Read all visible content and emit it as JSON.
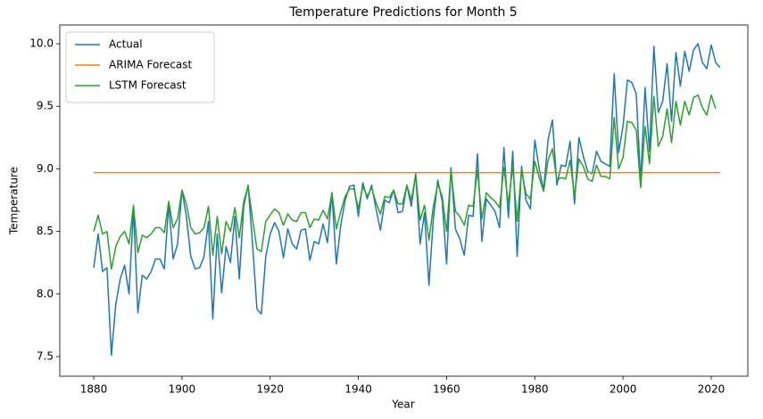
{
  "chart_data": {
    "type": "line",
    "title": "Temperature Predictions for Month 5",
    "xlabel": "Year",
    "ylabel": "Temperature",
    "x": [
      1880,
      1881,
      1882,
      1883,
      1884,
      1885,
      1886,
      1887,
      1888,
      1889,
      1890,
      1891,
      1892,
      1893,
      1894,
      1895,
      1896,
      1897,
      1898,
      1899,
      1900,
      1901,
      1902,
      1903,
      1904,
      1905,
      1906,
      1907,
      1908,
      1909,
      1910,
      1911,
      1912,
      1913,
      1914,
      1915,
      1916,
      1917,
      1918,
      1919,
      1920,
      1921,
      1922,
      1923,
      1924,
      1925,
      1926,
      1927,
      1928,
      1929,
      1930,
      1931,
      1932,
      1933,
      1934,
      1935,
      1936,
      1937,
      1938,
      1939,
      1940,
      1941,
      1942,
      1943,
      1944,
      1945,
      1946,
      1947,
      1948,
      1949,
      1950,
      1951,
      1952,
      1953,
      1954,
      1955,
      1956,
      1957,
      1958,
      1959,
      1960,
      1961,
      1962,
      1963,
      1964,
      1965,
      1966,
      1967,
      1968,
      1969,
      1970,
      1971,
      1972,
      1973,
      1974,
      1975,
      1976,
      1977,
      1978,
      1979,
      1980,
      1981,
      1982,
      1983,
      1984,
      1985,
      1986,
      1987,
      1988,
      1989,
      1990,
      1991,
      1992,
      1993,
      1994,
      1995,
      1996,
      1997,
      1998,
      1999,
      2000,
      2001,
      2002,
      2003,
      2004,
      2005,
      2006,
      2007,
      2008,
      2009,
      2010,
      2011,
      2012,
      2013,
      2014,
      2015,
      2016,
      2017,
      2018,
      2019,
      2020,
      2021,
      2022
    ],
    "series": [
      {
        "name": "Actual",
        "color": "#1f77b4",
        "values": [
          8.21,
          8.48,
          8.18,
          8.21,
          7.51,
          7.92,
          8.12,
          8.23,
          8.0,
          8.68,
          7.85,
          8.15,
          8.12,
          8.18,
          8.28,
          8.28,
          8.2,
          8.72,
          8.28,
          8.4,
          8.83,
          8.62,
          8.3,
          8.2,
          8.21,
          8.3,
          8.58,
          7.8,
          8.48,
          8.01,
          8.38,
          8.25,
          8.62,
          8.12,
          8.7,
          8.87,
          8.4,
          7.88,
          7.84,
          8.3,
          8.48,
          8.57,
          8.5,
          8.29,
          8.52,
          8.4,
          8.36,
          8.51,
          8.52,
          8.27,
          8.42,
          8.4,
          8.56,
          8.41,
          8.81,
          8.24,
          8.55,
          8.75,
          8.86,
          8.87,
          8.62,
          8.89,
          8.76,
          8.87,
          8.68,
          8.51,
          8.75,
          8.73,
          8.83,
          8.65,
          8.66,
          8.87,
          8.7,
          8.96,
          8.4,
          8.65,
          8.07,
          8.6,
          8.91,
          8.74,
          8.24,
          9.01,
          8.52,
          8.44,
          8.31,
          8.63,
          8.62,
          9.12,
          8.42,
          8.76,
          8.71,
          8.66,
          8.53,
          9.17,
          8.61,
          9.14,
          8.3,
          9.02,
          8.75,
          8.68,
          9.23,
          9.0,
          8.83,
          9.23,
          9.39,
          8.87,
          9.03,
          9.02,
          9.22,
          8.72,
          9.25,
          9.1,
          8.98,
          8.96,
          9.14,
          9.06,
          9.04,
          9.02,
          9.76,
          9.13,
          9.34,
          9.71,
          9.69,
          9.6,
          8.9,
          9.65,
          9.14,
          9.98,
          9.45,
          9.54,
          9.84,
          9.38,
          9.93,
          9.66,
          9.94,
          9.78,
          9.95,
          10.0,
          9.85,
          9.8,
          9.99,
          9.85,
          9.81
        ]
      },
      {
        "name": "ARIMA Forecast",
        "color": "#ff7f0e",
        "x": [
          1880,
          2022
        ],
        "values": [
          8.97,
          8.97
        ]
      },
      {
        "name": "LSTM Forecast",
        "color": "#2ca02c",
        "values": [
          8.5,
          8.63,
          8.48,
          8.5,
          8.2,
          8.38,
          8.46,
          8.5,
          8.4,
          8.71,
          8.33,
          8.47,
          8.45,
          8.48,
          8.53,
          8.53,
          8.49,
          8.74,
          8.53,
          8.6,
          8.83,
          8.72,
          8.53,
          8.48,
          8.49,
          8.53,
          8.7,
          8.31,
          8.62,
          8.32,
          8.58,
          8.5,
          8.69,
          8.45,
          8.74,
          8.86,
          8.6,
          8.36,
          8.34,
          8.58,
          8.63,
          8.68,
          8.65,
          8.55,
          8.64,
          8.59,
          8.58,
          8.65,
          8.65,
          8.53,
          8.6,
          8.59,
          8.67,
          8.6,
          8.81,
          8.52,
          8.66,
          8.78,
          8.84,
          8.84,
          8.68,
          8.86,
          8.78,
          8.85,
          8.73,
          8.64,
          8.78,
          8.77,
          8.83,
          8.72,
          8.72,
          8.87,
          8.75,
          8.95,
          8.59,
          8.71,
          8.43,
          8.7,
          8.88,
          8.78,
          8.5,
          8.98,
          8.66,
          8.62,
          8.55,
          8.71,
          8.7,
          8.99,
          8.6,
          8.81,
          8.77,
          8.74,
          8.69,
          9.01,
          8.72,
          9.02,
          8.58,
          8.99,
          8.8,
          8.76,
          9.06,
          8.93,
          8.82,
          9.07,
          9.16,
          8.91,
          8.93,
          8.92,
          9.07,
          8.78,
          9.08,
          9.02,
          8.92,
          8.9,
          9.03,
          8.94,
          8.94,
          8.92,
          9.41,
          9.0,
          9.09,
          9.38,
          9.37,
          9.31,
          8.85,
          9.34,
          9.04,
          9.58,
          9.18,
          9.26,
          9.48,
          9.21,
          9.54,
          9.35,
          9.54,
          9.43,
          9.57,
          9.59,
          9.49,
          9.43,
          9.59,
          9.48,
          null
        ]
      }
    ],
    "xlim": [
      1872.3,
      2028.3
    ],
    "ylim": [
      7.343,
      10.15
    ],
    "xticks": [
      1880,
      1900,
      1920,
      1940,
      1960,
      1980,
      2000,
      2020
    ],
    "yticks": [
      7.5,
      {
        "value": 8,
        "label": "8.0"
      },
      8.5,
      {
        "value": 9,
        "label": "9.0"
      },
      9.5,
      {
        "value": 10,
        "label": "10.0"
      }
    ],
    "legend": "upper left"
  }
}
